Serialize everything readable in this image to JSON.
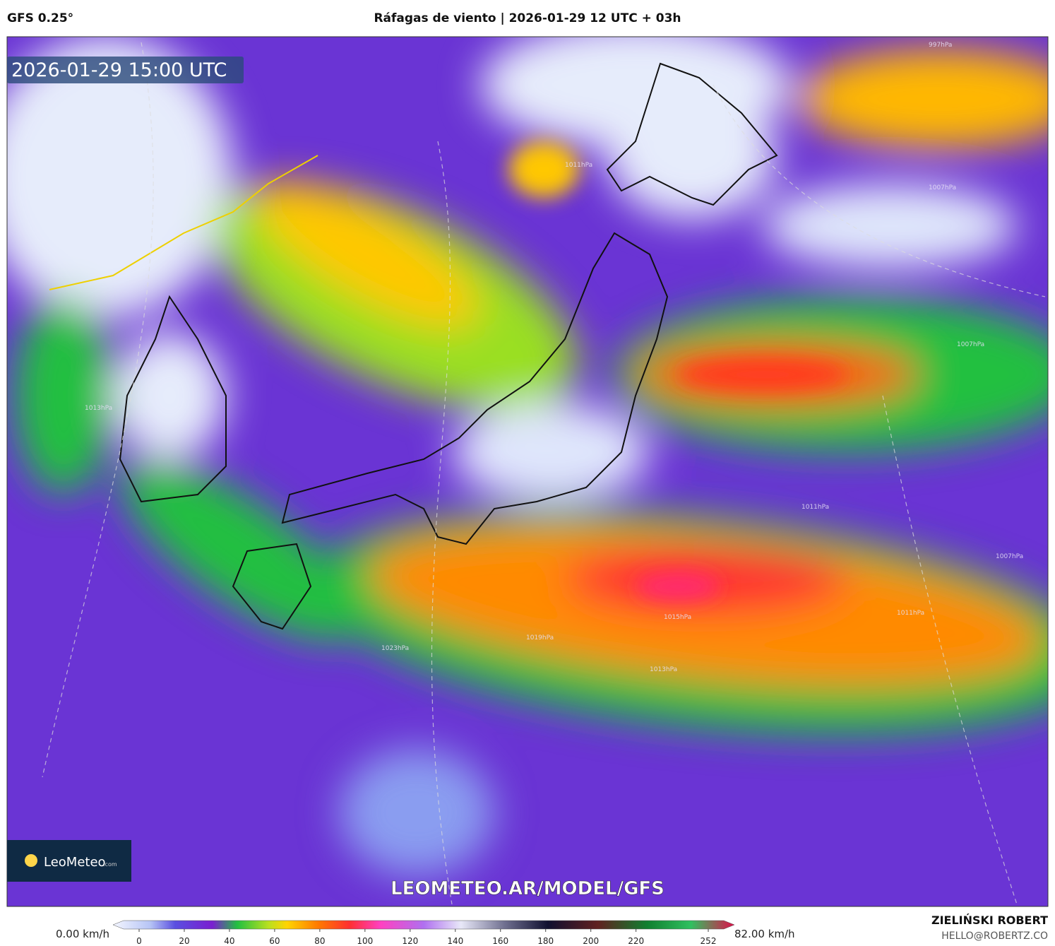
{
  "header": {
    "model": "GFS 0.25°",
    "title": "Ráfagas de viento | 2026-01-29 12 UTC + 03h"
  },
  "map": {
    "valid_time": "2026-01-29 15:00 UTC",
    "watermark": "LEOMETEO.AR/MODEL/GFS",
    "logo": {
      "name": "LeoMeteo",
      "suffix": ".com"
    },
    "isobar_labels": [
      "997hPa",
      "1011hPa",
      "1007hPa",
      "1007hPa",
      "1013hPa",
      "1011hPa",
      "1015hPa",
      "1019hPa",
      "1023hPa",
      "1013hPa",
      "1011hPa",
      "1007hPa"
    ]
  },
  "legend": {
    "min_label": "0.00 km/h",
    "max_label": "82.00 km/h",
    "ticks": [
      0,
      20,
      40,
      60,
      80,
      100,
      120,
      140,
      160,
      180,
      200,
      220,
      252
    ]
  },
  "footer": {
    "author": "ZIELIŃSKI ROBERT",
    "contact": "HELLO@ROBERTZ.CO"
  }
}
